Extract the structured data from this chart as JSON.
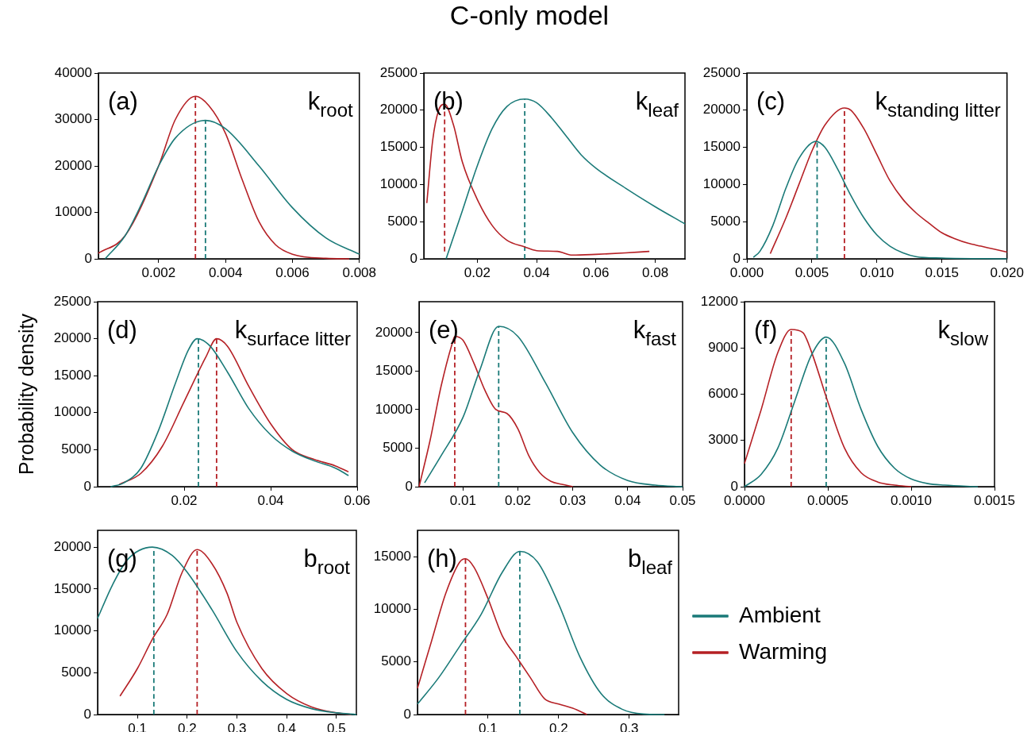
{
  "chart_data": [
    {
      "type": "line",
      "annotations": [
        "(a)",
        "k$_{root}$"
      ],
      "grid": false,
      "marker": "none",
      "xlim": [
        0.0002,
        0.008
      ],
      "xticks": [
        0.002,
        0.004,
        0.006,
        0.008
      ],
      "ylim": [
        0,
        40000
      ],
      "yticks": [
        0,
        10000,
        20000,
        30000,
        40000
      ],
      "series": [
        {
          "type": "line",
          "color": "#1a7a78",
          "x": [
            0.0004,
            0.001,
            0.0015,
            0.002,
            0.0025,
            0.0034,
            0.004,
            0.005,
            0.006,
            0.007,
            0.008
          ],
          "values": [
            0,
            5000,
            12000,
            20000,
            26000,
            29800,
            28000,
            20000,
            11000,
            4500,
            1000
          ]
        },
        {
          "type": "line",
          "color": "#b52025",
          "x": [
            0.0002,
            0.001,
            0.002,
            0.0025,
            0.0031,
            0.0035,
            0.004,
            0.0045,
            0.005,
            0.0055,
            0.006,
            0.007,
            0.0077
          ],
          "values": [
            1200,
            5000,
            20000,
            30000,
            35000,
            33000,
            27000,
            17000,
            8000,
            3000,
            1000,
            100,
            0
          ]
        },
        {
          "type": "line",
          "line_style": "dashed",
          "color": "#1a7a78",
          "x": [
            0.0034,
            0.0034
          ],
          "values": [
            0,
            29800
          ]
        },
        {
          "type": "line",
          "line_style": "dashed",
          "color": "#b52025",
          "x": [
            0.0031,
            0.0031
          ],
          "values": [
            0,
            35000
          ]
        }
      ]
    },
    {
      "type": "line",
      "title": "C-only model",
      "annotations": [
        "(b)",
        "k$_{leaf}$"
      ],
      "grid": false,
      "marker": "none",
      "xlim": [
        0.002,
        0.09
      ],
      "xticks": [
        0.02,
        0.04,
        0.06,
        0.08
      ],
      "ylim": [
        0,
        25000
      ],
      "yticks": [
        0,
        5000,
        10000,
        15000,
        20000,
        25000
      ],
      "series": [
        {
          "type": "line",
          "color": "#1a7a78",
          "x": [
            0.0095,
            0.015,
            0.02,
            0.025,
            0.03,
            0.036,
            0.04,
            0.045,
            0.05,
            0.055,
            0.06,
            0.07,
            0.08,
            0.09
          ],
          "values": [
            0,
            6500,
            12500,
            17500,
            20500,
            21500,
            21000,
            19000,
            16500,
            14000,
            12200,
            9500,
            7000,
            4700
          ]
        },
        {
          "type": "line",
          "color": "#b52025",
          "x": [
            0.003,
            0.005,
            0.007,
            0.009,
            0.012,
            0.015,
            0.02,
            0.025,
            0.03,
            0.036,
            0.04,
            0.047,
            0.052,
            0.06,
            0.07,
            0.078
          ],
          "values": [
            7500,
            16000,
            20000,
            20800,
            18000,
            13000,
            8000,
            4500,
            2500,
            1600,
            1100,
            1000,
            500,
            600,
            800,
            1000
          ]
        },
        {
          "type": "line",
          "line_style": "dashed",
          "color": "#1a7a78",
          "x": [
            0.036,
            0.036
          ],
          "values": [
            0,
            21500
          ]
        },
        {
          "type": "line",
          "line_style": "dashed",
          "color": "#b52025",
          "x": [
            0.009,
            0.009
          ],
          "values": [
            1000,
            20800
          ]
        }
      ]
    },
    {
      "type": "line",
      "annotations": [
        "(c)",
        "k$_{standing litter}$"
      ],
      "grid": false,
      "marker": "none",
      "xlim": [
        0,
        0.02
      ],
      "xticks": [
        {
          "value": 0,
          "label": "0.000"
        },
        0.005,
        {
          "value": 0.01,
          "label": "0.010"
        },
        0.015,
        {
          "value": 0.02,
          "label": "0.020"
        }
      ],
      "ylim": [
        0,
        25000
      ],
      "yticks": [
        0,
        5000,
        10000,
        15000,
        20000,
        25000
      ],
      "series": [
        {
          "type": "line",
          "color": "#1a7a78",
          "x": [
            0.0005,
            0.001,
            0.002,
            0.003,
            0.004,
            0.0053,
            0.006,
            0.007,
            0.008,
            0.009,
            0.01,
            0.011,
            0.012,
            0.013,
            0.015,
            0.02
          ],
          "values": [
            200,
            1000,
            4500,
            9500,
            13500,
            15800,
            15000,
            12000,
            8500,
            5500,
            3200,
            1700,
            800,
            300,
            100,
            0
          ]
        },
        {
          "type": "line",
          "color": "#b52025",
          "x": [
            0.0018,
            0.003,
            0.004,
            0.005,
            0.006,
            0.0075,
            0.008,
            0.009,
            0.01,
            0.011,
            0.012,
            0.013,
            0.014,
            0.015,
            0.016,
            0.017,
            0.018,
            0.019,
            0.02
          ],
          "values": [
            700,
            5500,
            10000,
            14500,
            18000,
            20300,
            20000,
            17500,
            14000,
            10500,
            8000,
            6200,
            4800,
            3500,
            2700,
            2100,
            1700,
            1300,
            900
          ]
        },
        {
          "type": "line",
          "line_style": "dashed",
          "color": "#1a7a78",
          "x": [
            0.0054,
            0.0054
          ],
          "values": [
            0,
            15800
          ]
        },
        {
          "type": "line",
          "line_style": "dashed",
          "color": "#b52025",
          "x": [
            0.0075,
            0.0075
          ],
          "values": [
            0,
            20300
          ]
        }
      ]
    },
    {
      "type": "line",
      "ylabel": "Probability density",
      "annotations": [
        "(d)",
        "k$_{surface litter}$"
      ],
      "grid": false,
      "marker": "none",
      "xlim": [
        0,
        0.06
      ],
      "xticks": [
        0.02,
        0.04,
        0.06
      ],
      "ylim": [
        0,
        25000
      ],
      "yticks": [
        0,
        5000,
        10000,
        15000,
        20000,
        25000
      ],
      "series": [
        {
          "type": "line",
          "color": "#1a7a78",
          "x": [
            0.003,
            0.006,
            0.01,
            0.014,
            0.018,
            0.021,
            0.023,
            0.026,
            0.03,
            0.035,
            0.04,
            0.045,
            0.05,
            0.055,
            0.058
          ],
          "values": [
            0,
            500,
            2500,
            7500,
            14000,
            18500,
            20000,
            19000,
            15500,
            10500,
            7000,
            4800,
            3500,
            2500,
            1500
          ]
        },
        {
          "type": "line",
          "color": "#b52025",
          "x": [
            0.005,
            0.01,
            0.015,
            0.02,
            0.025,
            0.0275,
            0.03,
            0.035,
            0.04,
            0.045,
            0.05,
            0.055,
            0.058
          ],
          "values": [
            300,
            1800,
            5500,
            11500,
            17500,
            20000,
            19000,
            13500,
            8500,
            5000,
            3700,
            2800,
            2000
          ]
        },
        {
          "type": "line",
          "line_style": "dashed",
          "color": "#1a7a78",
          "x": [
            0.0233,
            0.0233
          ],
          "values": [
            0,
            20000
          ]
        },
        {
          "type": "line",
          "line_style": "dashed",
          "color": "#b52025",
          "x": [
            0.0275,
            0.0275
          ],
          "values": [
            0,
            20000
          ]
        }
      ]
    },
    {
      "type": "line",
      "annotations": [
        "(e)",
        "k$_{fast}$"
      ],
      "grid": false,
      "marker": "none",
      "xlim": [
        0.002,
        0.05
      ],
      "xticks": [
        0.01,
        0.02,
        0.03,
        0.04,
        0.05
      ],
      "ylim": [
        0,
        24000
      ],
      "yticks": [
        0,
        5000,
        10000,
        15000,
        20000
      ],
      "series": [
        {
          "type": "line",
          "color": "#1a7a78",
          "x": [
            0.003,
            0.006,
            0.01,
            0.013,
            0.0165,
            0.02,
            0.025,
            0.03,
            0.035,
            0.04,
            0.045,
            0.05
          ],
          "values": [
            500,
            4000,
            9000,
            15000,
            20800,
            19500,
            13500,
            7000,
            2800,
            800,
            200,
            0
          ]
        },
        {
          "type": "line",
          "color": "#b52025",
          "x": [
            0.002,
            0.004,
            0.006,
            0.008,
            0.0085,
            0.01,
            0.012,
            0.014,
            0.016,
            0.018,
            0.02,
            0.022,
            0.024,
            0.026,
            0.028,
            0.03
          ],
          "values": [
            0,
            6000,
            13000,
            18500,
            19500,
            19000,
            16000,
            12500,
            10000,
            9500,
            7500,
            4000,
            1800,
            700,
            300,
            0
          ]
        },
        {
          "type": "line",
          "line_style": "dashed",
          "color": "#1a7a78",
          "x": [
            0.0165,
            0.0165
          ],
          "values": [
            0,
            20800
          ]
        },
        {
          "type": "line",
          "line_style": "dashed",
          "color": "#b52025",
          "x": [
            0.0085,
            0.0085
          ],
          "values": [
            0,
            19500
          ]
        }
      ]
    },
    {
      "type": "line",
      "annotations": [
        "(f)",
        "k$_{slow}$"
      ],
      "grid": false,
      "marker": "none",
      "xlim": [
        0,
        0.0015
      ],
      "xticks": [
        {
          "value": 0,
          "label": "0.0000"
        },
        {
          "value": 0.0005,
          "label": "0.0005"
        },
        {
          "value": 0.001,
          "label": "0.0010"
        },
        {
          "value": 0.0015,
          "label": "0.0015"
        }
      ],
      "ylim": [
        0,
        12000
      ],
      "yticks": [
        0,
        3000,
        6000,
        9000,
        12000
      ],
      "series": [
        {
          "type": "line",
          "color": "#1a7a78",
          "x": [
            0,
            0.0001,
            0.0002,
            0.0003,
            0.0004,
            0.00049,
            0.0006,
            0.0007,
            0.0008,
            0.0009,
            0.001,
            0.0011,
            0.0012,
            0.0014
          ],
          "values": [
            0,
            800,
            2500,
            5500,
            8500,
            9700,
            8000,
            5000,
            2600,
            1200,
            500,
            200,
            100,
            0
          ]
        },
        {
          "type": "line",
          "color": "#b52025",
          "x": [
            0,
            0.0001,
            0.0002,
            0.00028,
            0.00035,
            0.0004,
            0.0005,
            0.0006,
            0.0007,
            0.0008,
            0.0009,
            0.001
          ],
          "values": [
            1500,
            5000,
            8700,
            10200,
            10000,
            8800,
            5500,
            2500,
            900,
            300,
            100,
            0
          ]
        },
        {
          "type": "line",
          "line_style": "dashed",
          "color": "#1a7a78",
          "x": [
            0.00049,
            0.00049
          ],
          "values": [
            0,
            9700
          ]
        },
        {
          "type": "line",
          "line_style": "dashed",
          "color": "#b52025",
          "x": [
            0.00028,
            0.00028
          ],
          "values": [
            0,
            10200
          ]
        }
      ]
    },
    {
      "type": "line",
      "annotations": [
        "(g)",
        "b$_{root}$"
      ],
      "grid": false,
      "marker": "none",
      "xlim": [
        0.02,
        0.54
      ],
      "xticks": [
        0.1,
        0.2,
        0.3,
        0.4,
        0.5
      ],
      "ylim": [
        0,
        22000
      ],
      "yticks": [
        0,
        5000,
        10000,
        15000,
        20000
      ],
      "series": [
        {
          "type": "line",
          "color": "#1a7a78",
          "x": [
            0.02,
            0.05,
            0.08,
            0.13,
            0.17,
            0.2,
            0.25,
            0.3,
            0.35,
            0.4,
            0.45,
            0.5,
            0.54
          ],
          "values": [
            11500,
            15500,
            18500,
            20000,
            19000,
            17000,
            12500,
            7500,
            4000,
            1800,
            700,
            200,
            0
          ]
        },
        {
          "type": "line",
          "color": "#b52025",
          "x": [
            0.065,
            0.1,
            0.13,
            0.16,
            0.19,
            0.22,
            0.25,
            0.28,
            0.3,
            0.35,
            0.4,
            0.45,
            0.5,
            0.53
          ],
          "values": [
            2200,
            5500,
            9000,
            12000,
            17000,
            19700,
            18000,
            14500,
            11000,
            5500,
            2500,
            900,
            200,
            0
          ]
        },
        {
          "type": "line",
          "line_style": "dashed",
          "color": "#1a7a78",
          "x": [
            0.133,
            0.133
          ],
          "values": [
            0,
            20000
          ]
        },
        {
          "type": "line",
          "line_style": "dashed",
          "color": "#b52025",
          "x": [
            0.22,
            0.22
          ],
          "values": [
            0,
            19700
          ]
        }
      ]
    },
    {
      "type": "line",
      "annotations": [
        "(h)",
        "b$_{leaf}$"
      ],
      "grid": false,
      "marker": "none",
      "legend": "right",
      "xlim": [
        0,
        0.37
      ],
      "xticks": [
        0.1,
        0.2,
        0.3
      ],
      "ylim": [
        0,
        17500
      ],
      "yticks": [
        0,
        5000,
        10000,
        15000
      ],
      "series": [
        {
          "name": "Ambient",
          "type": "line",
          "color": "#1a7a78",
          "x": [
            0,
            0.03,
            0.06,
            0.09,
            0.12,
            0.145,
            0.17,
            0.2,
            0.23,
            0.26,
            0.29,
            0.32,
            0.35
          ],
          "values": [
            1000,
            3500,
            6500,
            9500,
            13500,
            15500,
            14500,
            10500,
            5500,
            2000,
            500,
            50,
            0
          ]
        },
        {
          "name": "Warming",
          "type": "line",
          "color": "#b52025",
          "x": [
            0,
            0.02,
            0.04,
            0.06,
            0.068,
            0.08,
            0.1,
            0.12,
            0.14,
            0.16,
            0.18,
            0.2,
            0.22,
            0.24
          ],
          "values": [
            2500,
            7000,
            11500,
            14500,
            14800,
            14000,
            11000,
            7500,
            5500,
            3500,
            1500,
            1000,
            600,
            0
          ]
        },
        {
          "type": "line",
          "line_style": "dashed",
          "color": "#1a7a78",
          "x": [
            0.145,
            0.145
          ],
          "values": [
            0,
            15500
          ]
        },
        {
          "type": "line",
          "line_style": "dashed",
          "color": "#b52025",
          "x": [
            0.068,
            0.068
          ],
          "values": [
            0,
            14800
          ]
        }
      ]
    }
  ]
}
